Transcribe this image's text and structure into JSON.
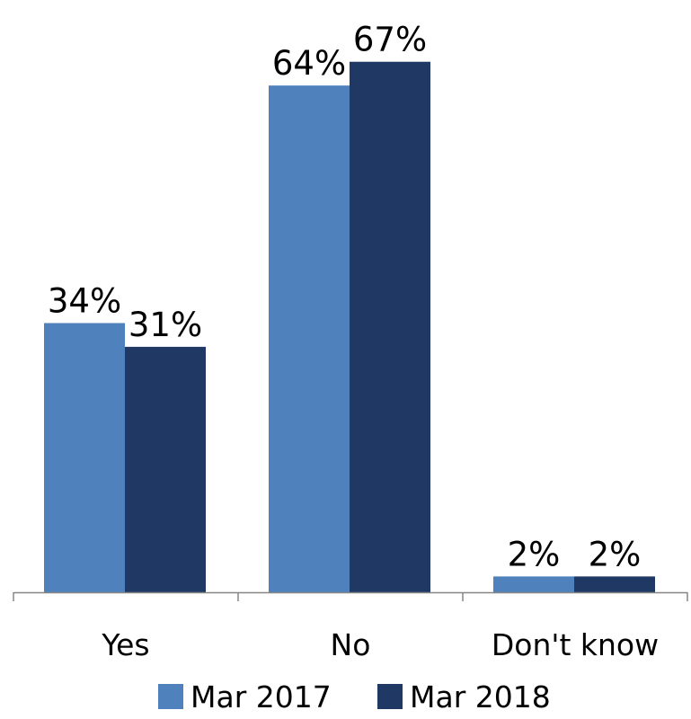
{
  "chart_data": {
    "type": "bar",
    "title": "",
    "xlabel": "",
    "ylabel": "",
    "categories": [
      "Yes",
      "No",
      "Don't know"
    ],
    "series": [
      {
        "name": "Mar 2017",
        "color": "#4F81BD",
        "values": [
          34,
          64,
          2
        ],
        "labels": [
          "34%",
          "64%",
          "2%"
        ]
      },
      {
        "name": "Mar 2018",
        "color": "#1F3864",
        "values": [
          31,
          67,
          2
        ],
        "labels": [
          "31%",
          "67%",
          "2%"
        ]
      }
    ],
    "unit": "%",
    "ylim": [
      0,
      70
    ],
    "grid": false,
    "legend_position": "bottom"
  }
}
